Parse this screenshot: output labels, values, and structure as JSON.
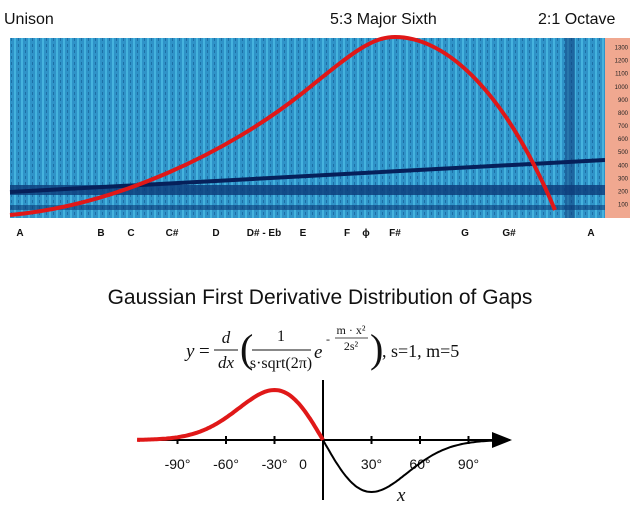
{
  "top_labels": [
    "Unison",
    "5:3 Major Sixth",
    "2:1 Octave"
  ],
  "scale_ticks": [
    1300,
    1200,
    1100,
    1000,
    900,
    800,
    700,
    600,
    500,
    400,
    300,
    200,
    100
  ],
  "notes": [
    "A",
    "B",
    "C",
    "C#",
    "D",
    "D# - Eb",
    "E",
    "F",
    "ϕ",
    "F#",
    "G",
    "G#",
    "A"
  ],
  "title": "Gaussian First Derivative Distribution of Gaps",
  "formula": {
    "y": "y",
    "eq": "=",
    "d": "d",
    "dx": "dx",
    "one": "1",
    "den": "s·sqrt(2π)",
    "e": "e",
    "exp_sign": "-",
    "exp_num": "m · x²",
    "exp_den": "2s²",
    "params": ", s=1, m=5"
  },
  "plot": {
    "xticks": [
      {
        "value": -90,
        "label": "-90°"
      },
      {
        "value": -60,
        "label": "-60°"
      },
      {
        "value": -30,
        "label": "-30°"
      },
      {
        "value": 0,
        "label": "0"
      },
      {
        "value": 30,
        "label": "30°"
      },
      {
        "value": 60,
        "label": "60°"
      },
      {
        "value": 90,
        "label": "90°"
      }
    ],
    "xlabel": "x"
  }
}
